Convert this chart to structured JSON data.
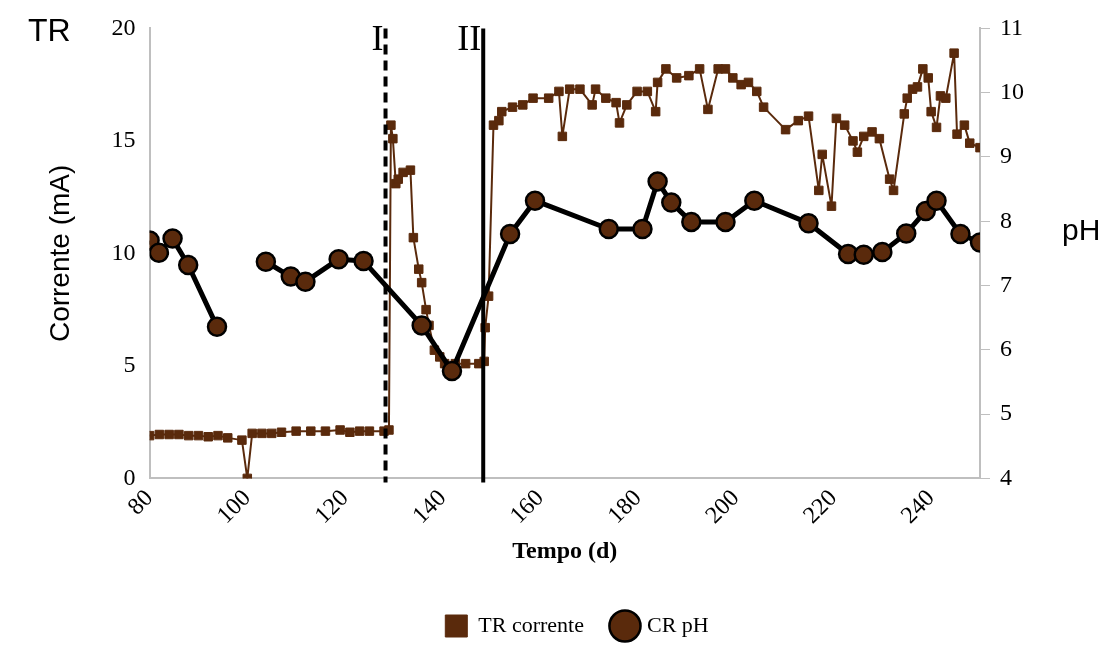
{
  "chart_data": {
    "type": "line",
    "xlabel": "Tempo (d)",
    "ylabel": "Corrente (mA)",
    "y2label": "pH",
    "annotations": [
      "TR"
    ],
    "xlim": [
      80,
      250
    ],
    "xticks": [
      80,
      100,
      120,
      140,
      160,
      180,
      200,
      220,
      240
    ],
    "ylim": [
      0,
      20
    ],
    "yticks": [
      0,
      5,
      10,
      15,
      20
    ],
    "y2lim": [
      4,
      11
    ],
    "y2ticks": [
      4,
      5,
      6,
      7,
      8,
      9,
      10,
      11
    ],
    "grid": false,
    "legend": "bottom",
    "ref_lines": [
      {
        "axis": "x",
        "value": 128.3,
        "label": "I",
        "line_style": "dashed",
        "color": "#000000"
      },
      {
        "axis": "x",
        "value": 148.3,
        "label": "II",
        "line_style": "solid",
        "color": "#000000"
      }
    ],
    "series": [
      {
        "name": "TR corrente",
        "color": "#5a2a0c",
        "marker": "square",
        "line_style": "solid",
        "x": [
          80,
          82,
          84,
          86,
          88,
          90,
          92,
          94,
          96,
          98.9,
          100,
          101,
          103,
          105,
          107,
          110,
          113,
          116,
          119,
          121,
          123,
          125,
          128,
          129,
          129.4,
          129.8,
          130.4,
          130.9,
          131.9,
          133.4,
          134.0,
          135.1,
          135.7,
          136.6,
          137.2,
          138.3,
          139.4,
          140.4,
          142.6,
          144.7,
          147.4,
          148.5,
          148.7,
          149.4,
          150.4,
          151.5,
          152.1,
          154.3,
          156.4,
          158.5,
          161.7,
          163.8,
          164.5,
          166.0,
          168.1,
          170.6,
          171.3,
          173.4,
          175.5,
          176.2,
          177.7,
          179.8,
          181.9,
          183.6,
          184.0,
          185.7,
          187.9,
          190.4,
          192.6,
          194.3,
          196.4,
          197.9,
          199.4,
          201.1,
          202.6,
          204.3,
          205.7,
          210.2,
          212.8,
          214.9,
          217.0,
          217.7,
          219.6,
          220.6,
          222.3,
          224.0,
          224.9,
          226.2,
          227.9,
          229.4,
          231.5,
          232.3,
          234.5,
          235.1,
          236.2,
          237.2,
          238.3,
          239.4,
          240.0,
          241.1,
          241.9,
          243.0,
          244.7,
          245.3,
          246.8,
          247.9,
          250
        ],
        "values": [
          1.9,
          1.95,
          1.95,
          1.95,
          1.9,
          1.9,
          1.85,
          1.9,
          1.8,
          1.7,
          0,
          2.0,
          2.0,
          2.0,
          2.05,
          2.1,
          2.1,
          2.1,
          2.15,
          2.05,
          2.1,
          2.1,
          2.1,
          2.15,
          15.7,
          15.1,
          13.1,
          13.3,
          13.6,
          13.7,
          10.7,
          9.3,
          8.7,
          7.5,
          6.8,
          5.7,
          5.4,
          5.1,
          5.1,
          5.1,
          5.1,
          5.2,
          6.7,
          8.1,
          15.7,
          15.9,
          16.3,
          16.5,
          16.6,
          16.9,
          16.9,
          17.2,
          15.2,
          17.3,
          17.3,
          16.6,
          17.3,
          16.9,
          16.7,
          15.8,
          16.6,
          17.2,
          17.2,
          16.3,
          17.6,
          18.2,
          17.8,
          17.9,
          18.2,
          16.4,
          18.2,
          18.2,
          17.8,
          17.5,
          17.6,
          17.2,
          16.5,
          15.5,
          15.9,
          16.1,
          12.8,
          14.4,
          12.1,
          16.0,
          15.7,
          15.0,
          14.5,
          15.2,
          15.4,
          15.1,
          13.3,
          12.8,
          16.2,
          16.9,
          17.3,
          17.4,
          18.2,
          17.8,
          16.3,
          15.6,
          17.0,
          16.9,
          18.9,
          15.3,
          15.7,
          14.9,
          14.7
        ]
      },
      {
        "name": "CR pH",
        "color": "#000000",
        "marker": "circle",
        "line_style": "solid",
        "axis": "y2",
        "x": [
          80,
          81.9,
          84.7,
          87.9,
          93.8,
          99,
          103.8,
          108.9,
          111.9,
          118.7,
          123.8,
          135.7,
          141.9,
          153.8,
          158.9,
          174.0,
          180.9,
          184.0,
          186.8,
          190.9,
          197.9,
          203.8,
          214.9,
          223.0,
          226.2,
          230.0,
          234.9,
          238.9,
          241.1,
          246.0,
          250
        ],
        "values": [
          7.7,
          7.51,
          7.73,
          7.32,
          6.36,
          null,
          7.37,
          7.14,
          7.06,
          7.41,
          7.38,
          6.38,
          5.67,
          7.8,
          8.32,
          7.88,
          7.88,
          8.62,
          8.29,
          7.99,
          7.99,
          8.32,
          7.97,
          7.49,
          7.48,
          7.52,
          7.81,
          8.16,
          8.32,
          7.8,
          7.67
        ]
      }
    ]
  }
}
